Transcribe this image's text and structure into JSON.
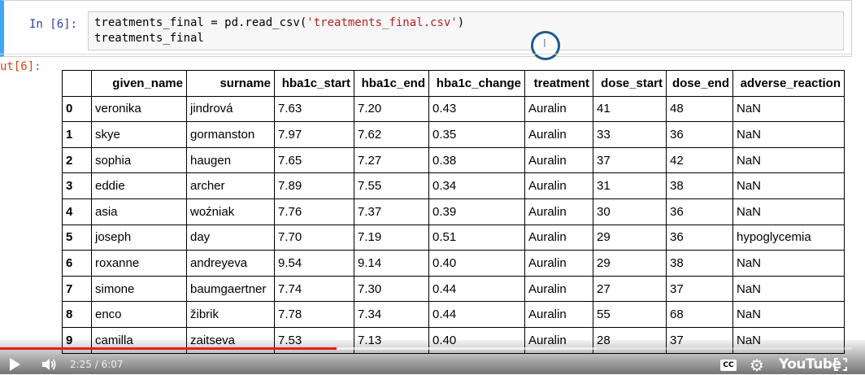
{
  "input_cell": {
    "prompt": "In [6]:",
    "code_line1_pre": "treatments_final = pd.read_csv(",
    "code_line1_str": "'treatments_final.csv'",
    "code_line1_post": ")",
    "code_line2": "treatments_final"
  },
  "output_cell": {
    "prompt": "ut[6]:"
  },
  "table": {
    "columns": [
      "given_name",
      "surname",
      "hba1c_start",
      "hba1c_end",
      "hba1c_change",
      "treatment",
      "dose_start",
      "dose_end",
      "adverse_reaction"
    ],
    "rows": [
      {
        "index": "0",
        "cells": [
          "veronika",
          "jindrová",
          "7.63",
          "7.20",
          "0.43",
          "Auralin",
          "41",
          "48",
          "NaN"
        ]
      },
      {
        "index": "1",
        "cells": [
          "skye",
          "gormanston",
          "7.97",
          "7.62",
          "0.35",
          "Auralin",
          "33",
          "36",
          "NaN"
        ]
      },
      {
        "index": "2",
        "cells": [
          "sophia",
          "haugen",
          "7.65",
          "7.27",
          "0.38",
          "Auralin",
          "37",
          "42",
          "NaN"
        ]
      },
      {
        "index": "3",
        "cells": [
          "eddie",
          "archer",
          "7.89",
          "7.55",
          "0.34",
          "Auralin",
          "31",
          "38",
          "NaN"
        ]
      },
      {
        "index": "4",
        "cells": [
          "asia",
          "woźniak",
          "7.76",
          "7.37",
          "0.39",
          "Auralin",
          "30",
          "36",
          "NaN"
        ]
      },
      {
        "index": "5",
        "cells": [
          "joseph",
          "day",
          "7.70",
          "7.19",
          "0.51",
          "Auralin",
          "29",
          "36",
          "hypoglycemia"
        ]
      },
      {
        "index": "6",
        "cells": [
          "roxanne",
          "andreyeva",
          "9.54",
          "9.14",
          "0.40",
          "Auralin",
          "29",
          "38",
          "NaN"
        ]
      },
      {
        "index": "7",
        "cells": [
          "simone",
          "baumgaertner",
          "7.74",
          "7.30",
          "0.44",
          "Auralin",
          "27",
          "37",
          "NaN"
        ]
      },
      {
        "index": "8",
        "cells": [
          "enco",
          "žibrik",
          "7.78",
          "7.34",
          "0.44",
          "Auralin",
          "55",
          "68",
          "NaN"
        ]
      },
      {
        "index": "9",
        "cells": [
          "camilla",
          "zaitseva",
          "7.53",
          "7.13",
          "0.40",
          "Auralin",
          "28",
          "37",
          "NaN"
        ]
      }
    ]
  },
  "player": {
    "current_time": "2:25",
    "duration": "6:07",
    "time_display": "2:25 / 6:07",
    "progress_fraction": 0.395,
    "cc_label": "CC",
    "logo_text": "YouTube"
  },
  "colors": {
    "progress": "#e62117",
    "in_prompt": "#303f9f",
    "out_prompt": "#d84315",
    "string": "#ba2121"
  }
}
